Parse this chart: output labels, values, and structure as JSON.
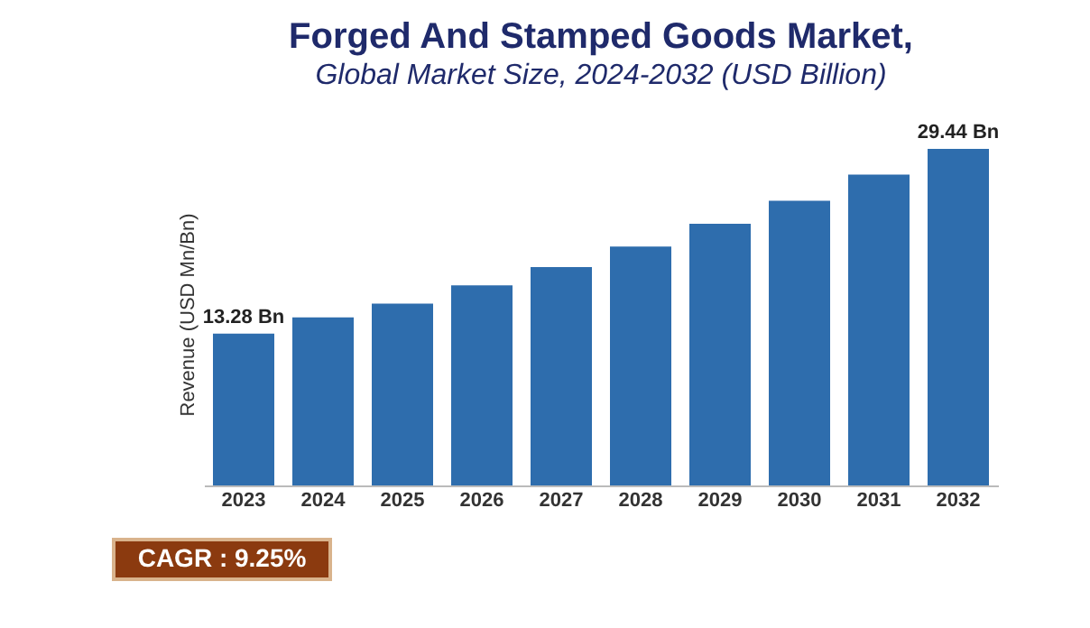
{
  "chart_data": {
    "type": "bar",
    "title": "Forged And Stamped Goods Market,",
    "subtitle": "Global Market Size, 2024-2032 (USD Billion)",
    "ylabel": "Revenue (USD Mn/Bn)",
    "categories": [
      "2023",
      "2024",
      "2025",
      "2026",
      "2027",
      "2028",
      "2029",
      "2030",
      "2031",
      "2032"
    ],
    "values": [
      13.28,
      14.7,
      15.9,
      17.5,
      19.1,
      20.9,
      22.9,
      24.9,
      27.2,
      29.44
    ],
    "value_labels": [
      "13.28 Bn",
      null,
      null,
      null,
      null,
      null,
      null,
      null,
      null,
      "29.44 Bn"
    ],
    "color": "#2e6dad",
    "grid": false,
    "annotations": [
      "CAGR : 9.25%"
    ]
  }
}
